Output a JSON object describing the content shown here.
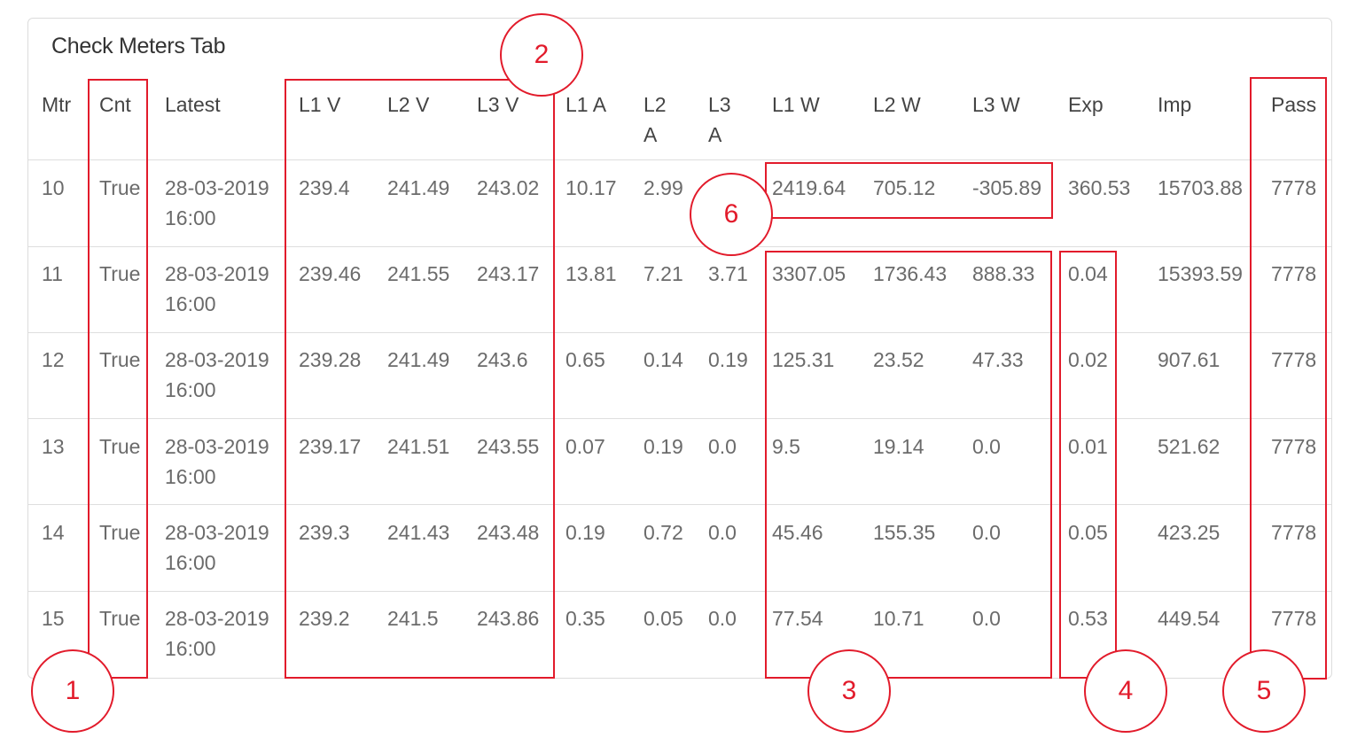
{
  "panel": {
    "title": "Check Meters Tab"
  },
  "table": {
    "columns": [
      "Mtr",
      "Cnt",
      "Latest",
      "L1 V",
      "L2 V",
      "L3 V",
      "L1 A",
      "L2\nA",
      "L3\nA",
      "L1 W",
      "L2 W",
      "L3 W",
      "Exp",
      "Imp",
      "Pass"
    ],
    "rows": [
      [
        "10",
        "True",
        "28-03-2019\n16:00",
        "239.4",
        "241.49",
        "243.02",
        "10.17",
        "2.99",
        "",
        "2419.64",
        "705.12",
        "-305.89",
        "360.53",
        "15703.88",
        "7778"
      ],
      [
        "11",
        "True",
        "28-03-2019\n16:00",
        "239.46",
        "241.55",
        "243.17",
        "13.81",
        "7.21",
        "3.71",
        "3307.05",
        "1736.43",
        "888.33",
        "0.04",
        "15393.59",
        "7778"
      ],
      [
        "12",
        "True",
        "28-03-2019\n16:00",
        "239.28",
        "241.49",
        "243.6",
        "0.65",
        "0.14",
        "0.19",
        "125.31",
        "23.52",
        "47.33",
        "0.02",
        "907.61",
        "7778"
      ],
      [
        "13",
        "True",
        "28-03-2019\n16:00",
        "239.17",
        "241.51",
        "243.55",
        "0.07",
        "0.19",
        "0.0",
        "9.5",
        "19.14",
        "0.0",
        "0.01",
        "521.62",
        "7778"
      ],
      [
        "14",
        "True",
        "28-03-2019\n16:00",
        "239.3",
        "241.43",
        "243.48",
        "0.19",
        "0.72",
        "0.0",
        "45.46",
        "155.35",
        "0.0",
        "0.05",
        "423.25",
        "7778"
      ],
      [
        "15",
        "True",
        "28-03-2019\n16:00",
        "239.2",
        "241.5",
        "243.86",
        "0.35",
        "0.05",
        "0.0",
        "77.54",
        "10.71",
        "0.0",
        "0.53",
        "449.54",
        "7778"
      ]
    ]
  },
  "annotations": {
    "callouts": [
      "1",
      "2",
      "3",
      "4",
      "5",
      "6"
    ],
    "color": "#e21b2b"
  }
}
